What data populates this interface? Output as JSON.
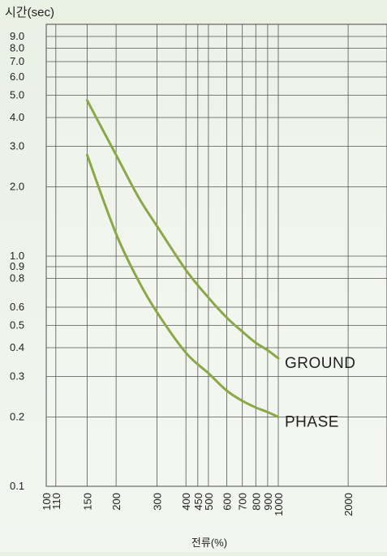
{
  "chart_data": {
    "type": "line",
    "ylabel": "시간(sec)",
    "xlabel": "전류(%)",
    "x_scale": "log",
    "y_scale": "log",
    "xlim": [
      100,
      2000
    ],
    "ylim": [
      0.1,
      9.0
    ],
    "grid": true,
    "x_ticks": [
      100,
      110,
      150,
      200,
      300,
      400,
      450,
      500,
      600,
      700,
      800,
      900,
      1000,
      2000
    ],
    "x_tick_labels": [
      "100",
      "110",
      "150",
      "200",
      "300",
      "400",
      "450",
      "500",
      "600",
      "700",
      "800",
      "900",
      "1000",
      "2000"
    ],
    "y_ticks": [
      0.1,
      0.2,
      0.3,
      0.4,
      0.5,
      0.6,
      0.8,
      0.9,
      1.0,
      2.0,
      3.0,
      4.0,
      5.0,
      6.0,
      7.0,
      8.0,
      9.0
    ],
    "y_tick_labels": [
      "0.1",
      "0.2",
      "0.3",
      "0.4",
      "0.5",
      "0.6",
      "0.8",
      "0.9",
      "1.0",
      "2.0",
      "3.0",
      "4.0",
      "5.0",
      "6.0",
      "7.0",
      "8.0",
      "9.0"
    ],
    "series": [
      {
        "name": "GROUND",
        "color": "#8aa845",
        "x": [
          150,
          200,
          250,
          300,
          400,
          500,
          600,
          700,
          800,
          900,
          1000
        ],
        "y": [
          4.75,
          2.75,
          1.8,
          1.35,
          0.87,
          0.66,
          0.54,
          0.47,
          0.42,
          0.39,
          0.36
        ]
      },
      {
        "name": "PHASE",
        "color": "#8aa845",
        "x": [
          150,
          200,
          250,
          300,
          400,
          500,
          600,
          700,
          800,
          900,
          1000
        ],
        "y": [
          2.75,
          1.25,
          0.78,
          0.57,
          0.38,
          0.31,
          0.26,
          0.235,
          0.22,
          0.21,
          0.2
        ]
      }
    ]
  }
}
